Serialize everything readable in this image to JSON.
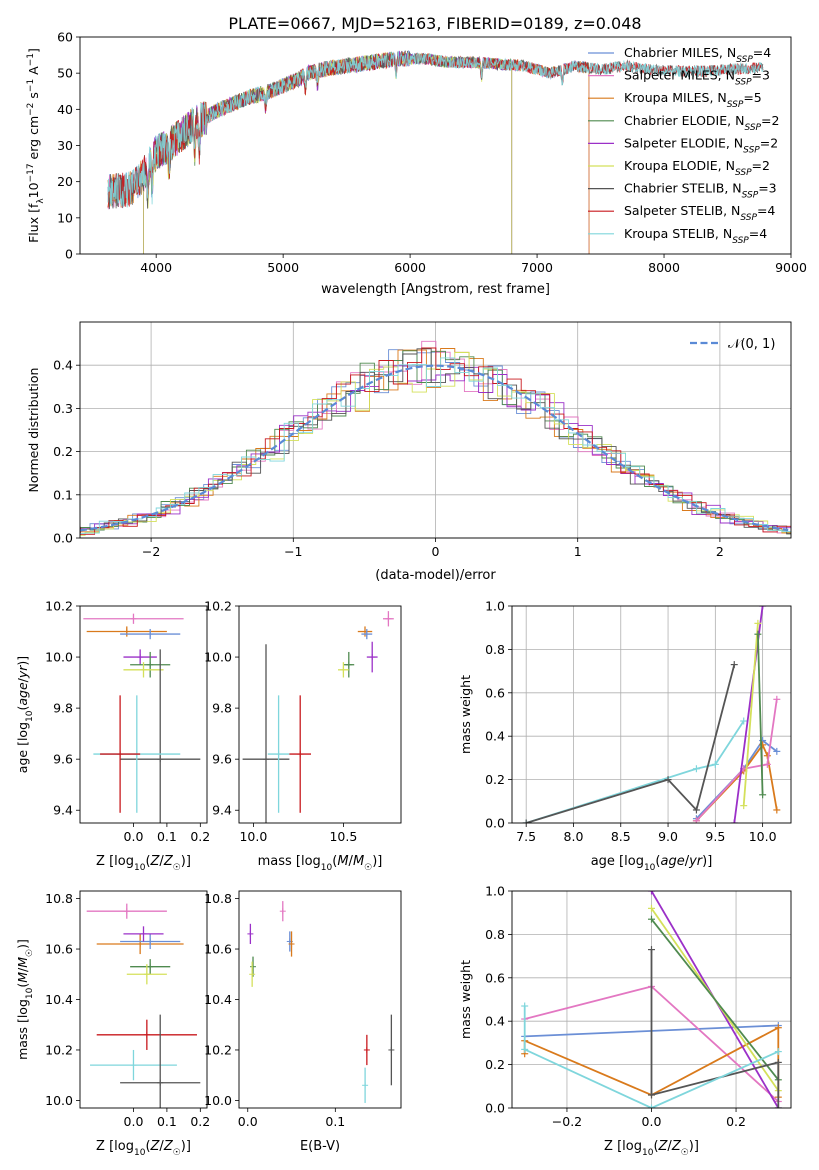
{
  "figure_title": "PLATE=0667, MJD=52163, FIBERID=0189, z=0.048",
  "colors": {
    "chabrier_miles": "#6b8fd6",
    "salpeter_miles": "#e377c2",
    "kroupa_miles": "#d97a1c",
    "chabrier_elodie": "#4f8a4f",
    "salpeter_elodie": "#9b30c8",
    "kroupa_elodie": "#d4e05a",
    "chabrier_stelib": "#555555",
    "salpeter_stelib": "#c8191e",
    "kroupa_stelib": "#7fd6dc",
    "normal_curve": "#5a8ad6",
    "grid": "#b0b0b0"
  },
  "chart_data": [
    {
      "id": "spectrum",
      "type": "line",
      "xlabel": "wavelength [Angstrom, rest frame]",
      "ylabel": "Flux [f_λ10^-17 erg cm^-2 s^-1 A^-1]",
      "xlim": [
        3400,
        9000
      ],
      "ylim": [
        0,
        60
      ],
      "xticks": [
        4000,
        5000,
        6000,
        7000,
        8000,
        9000
      ],
      "yticks": [
        0,
        10,
        20,
        30,
        40,
        50,
        60
      ],
      "grid": false,
      "legend_position": "top-right",
      "legend": [
        {
          "key": "chabrier_miles",
          "label": "Chabrier MILES, N",
          "sub": "SSP",
          "suffix": "=4",
          "range": [
            3620,
            7410
          ]
        },
        {
          "key": "salpeter_miles",
          "label": "Salpeter MILES, N",
          "sub": "SSP",
          "suffix": "=3",
          "range": [
            3620,
            7410
          ]
        },
        {
          "key": "kroupa_miles",
          "label": "Kroupa MILES, N",
          "sub": "SSP",
          "suffix": "=5",
          "range": [
            3620,
            7410
          ]
        },
        {
          "key": "chabrier_elodie",
          "label": "Chabrier ELODIE, N",
          "sub": "SSP",
          "suffix": "=2",
          "range": [
            3900,
            6800
          ]
        },
        {
          "key": "salpeter_elodie",
          "label": "Salpeter ELODIE, N",
          "sub": "SSP",
          "suffix": "=2",
          "range": [
            3900,
            6800
          ]
        },
        {
          "key": "kroupa_elodie",
          "label": "Kroupa ELODIE, N",
          "sub": "SSP",
          "suffix": "=2",
          "range": [
            3900,
            6800
          ]
        },
        {
          "key": "chabrier_stelib",
          "label": "Chabrier STELIB, N",
          "sub": "SSP",
          "suffix": "=3",
          "range": [
            3620,
            8780
          ]
        },
        {
          "key": "salpeter_stelib",
          "label": "Salpeter STELIB, N",
          "sub": "SSP",
          "suffix": "=4",
          "range": [
            3620,
            8780
          ]
        },
        {
          "key": "kroupa_stelib",
          "label": "Kroupa STELIB, N",
          "sub": "SSP",
          "suffix": "=4",
          "range": [
            3620,
            8780
          ]
        }
      ],
      "continuum_wavelength": [
        3620,
        3800,
        3900,
        4000,
        4100,
        4200,
        4300,
        4400,
        4500,
        4700,
        4900,
        5100,
        5200,
        5300,
        5500,
        5700,
        5900,
        6100,
        6300,
        6500,
        6700,
        6900,
        7100,
        7300,
        7500,
        7700,
        7900,
        8100,
        8300,
        8500,
        8780
      ],
      "continuum_flux": [
        17,
        18,
        22,
        28,
        30,
        33,
        36,
        38,
        40,
        43,
        45,
        48,
        50,
        51,
        52,
        53,
        54,
        54,
        53,
        53,
        52.5,
        52,
        50,
        52,
        51,
        52,
        51,
        50.5,
        50.5,
        51,
        51.5
      ]
    },
    {
      "id": "residuals",
      "type": "bar",
      "xlabel": "(data-model)/error",
      "ylabel": "Normed distribution",
      "xlim": [
        -2.5,
        2.5
      ],
      "ylim": [
        0,
        0.5
      ],
      "xticks": [
        -2,
        -1,
        0,
        1,
        2
      ],
      "yticks": [
        0.0,
        0.1,
        0.2,
        0.3,
        0.4
      ],
      "grid": true,
      "legend_position": "top-right",
      "legend_label": "𝒩(0, 1)",
      "bin_width": 0.1
    },
    {
      "id": "age_vs_Z",
      "type": "scatter",
      "xlabel": "Z [log₁₀(Z/Z☉)]",
      "ylabel": "age  [log₁₀(age/yr)]",
      "xlim": [
        -0.16,
        0.22
      ],
      "ylim": [
        9.35,
        10.2
      ],
      "xticks": [
        0.0,
        0.1,
        0.2
      ],
      "yticks": [
        9.4,
        9.6,
        9.8,
        10.0,
        10.2
      ],
      "grid": false,
      "points": [
        {
          "key": "salpeter_miles",
          "x": 0.0,
          "xerr": 0.15,
          "y": 10.15,
          "yerr": 0.02
        },
        {
          "key": "kroupa_miles",
          "x": -0.02,
          "xerr": 0.12,
          "y": 10.1,
          "yerr": 0.02
        },
        {
          "key": "chabrier_miles",
          "x": 0.05,
          "xerr": 0.09,
          "y": 10.09,
          "yerr": 0.02
        },
        {
          "key": "salpeter_elodie",
          "x": 0.02,
          "xerr": 0.05,
          "y": 10.0,
          "yerr": 0.03
        },
        {
          "key": "chabrier_elodie",
          "x": 0.05,
          "xerr": 0.06,
          "y": 9.97,
          "yerr": 0.05
        },
        {
          "key": "kroupa_elodie",
          "x": 0.03,
          "xerr": 0.06,
          "y": 9.95,
          "yerr": 0.03
        },
        {
          "key": "chabrier_stelib",
          "x": 0.08,
          "xerr": 0.12,
          "y": 9.6,
          "yerr": 0.43
        },
        {
          "key": "kroupa_stelib",
          "x": 0.01,
          "xerr": 0.13,
          "y": 9.62,
          "yerr": 0.23
        },
        {
          "key": "salpeter_stelib",
          "x": -0.04,
          "xerr": 0.06,
          "y": 9.62,
          "yerr": 0.23
        }
      ]
    },
    {
      "id": "age_vs_mass",
      "type": "scatter",
      "xlabel": "mass [log₁₀(M/M☉)]",
      "ylabel": "",
      "xlim": [
        9.92,
        10.82
      ],
      "ylim": [
        9.35,
        10.2
      ],
      "xticks": [
        10.0,
        10.5
      ],
      "yticks": [
        9.4,
        9.6,
        9.8,
        10.0,
        10.2
      ],
      "grid": false,
      "points": [
        {
          "key": "salpeter_miles",
          "x": 10.75,
          "xerr": 0.03,
          "y": 10.15,
          "yerr": 0.03
        },
        {
          "key": "kroupa_miles",
          "x": 10.62,
          "xerr": 0.04,
          "y": 10.1,
          "yerr": 0.02
        },
        {
          "key": "chabrier_miles",
          "x": 10.63,
          "xerr": 0.03,
          "y": 10.09,
          "yerr": 0.02
        },
        {
          "key": "salpeter_elodie",
          "x": 10.66,
          "xerr": 0.03,
          "y": 10.0,
          "yerr": 0.06
        },
        {
          "key": "chabrier_elodie",
          "x": 10.53,
          "xerr": 0.03,
          "y": 9.97,
          "yerr": 0.05
        },
        {
          "key": "kroupa_elodie",
          "x": 10.5,
          "xerr": 0.03,
          "y": 9.95,
          "yerr": 0.03
        },
        {
          "key": "chabrier_stelib",
          "x": 10.07,
          "xerr": 0.13,
          "y": 9.6,
          "yerr": 0.45
        },
        {
          "key": "kroupa_stelib",
          "x": 10.14,
          "xerr": 0.06,
          "y": 9.62,
          "yerr": 0.23
        },
        {
          "key": "salpeter_stelib",
          "x": 10.26,
          "xerr": 0.06,
          "y": 9.62,
          "yerr": 0.23
        }
      ]
    },
    {
      "id": "weight_vs_age",
      "type": "line",
      "xlabel": "age  [log₁₀(age/yr)]",
      "ylabel": "mass weight",
      "xlim": [
        7.35,
        10.3
      ],
      "ylim": [
        0,
        1
      ],
      "xticks": [
        7.5,
        8.0,
        8.5,
        9.0,
        9.5,
        10.0
      ],
      "yticks": [
        0.0,
        0.2,
        0.4,
        0.6,
        0.8,
        1.0
      ],
      "grid": true,
      "series": [
        {
          "key": "kroupa_stelib",
          "x": [
            7.5,
            9.3,
            9.5,
            9.8
          ],
          "y": [
            0.0,
            0.25,
            0.27,
            0.47
          ]
        },
        {
          "key": "chabrier_stelib",
          "x": [
            7.5,
            9.0,
            9.3,
            9.7
          ],
          "y": [
            0.0,
            0.2,
            0.06,
            0.73
          ]
        },
        {
          "key": "chabrier_miles",
          "x": [
            9.3,
            9.8,
            10.0,
            10.15
          ],
          "y": [
            0.02,
            0.25,
            0.38,
            0.33
          ]
        },
        {
          "key": "kroupa_miles",
          "x": [
            9.3,
            9.8,
            10.0,
            10.05,
            10.15
          ],
          "y": [
            0.01,
            0.24,
            0.36,
            0.31,
            0.06
          ]
        },
        {
          "key": "salpeter_miles",
          "x": [
            9.3,
            9.8,
            10.05,
            10.15
          ],
          "y": [
            0.01,
            0.25,
            0.27,
            0.57
          ]
        },
        {
          "key": "salpeter_elodie",
          "x": [
            9.7,
            10.0
          ],
          "y": [
            0.0,
            1.0
          ]
        },
        {
          "key": "kroupa_elodie",
          "x": [
            9.8,
            9.95
          ],
          "y": [
            0.08,
            0.92
          ]
        },
        {
          "key": "chabrier_elodie",
          "x": [
            9.95,
            10.0
          ],
          "y": [
            0.87,
            0.13
          ]
        }
      ]
    },
    {
      "id": "mass_vs_Z",
      "type": "scatter",
      "xlabel": "Z [log₁₀(Z/Z☉)]",
      "ylabel": "mass [log₁₀(M/M☉)]",
      "xlim": [
        -0.16,
        0.22
      ],
      "ylim": [
        9.97,
        10.83
      ],
      "xticks": [
        0.0,
        0.1,
        0.2
      ],
      "yticks": [
        10.0,
        10.2,
        10.4,
        10.6,
        10.8
      ],
      "grid": false,
      "points": [
        {
          "key": "salpeter_miles",
          "x": -0.02,
          "xerr": 0.12,
          "y": 10.75,
          "yerr": 0.03
        },
        {
          "key": "kroupa_miles",
          "x": 0.02,
          "xerr": 0.13,
          "y": 10.62,
          "yerr": 0.04
        },
        {
          "key": "chabrier_miles",
          "x": 0.05,
          "xerr": 0.09,
          "y": 10.63,
          "yerr": 0.03
        },
        {
          "key": "salpeter_elodie",
          "x": 0.03,
          "xerr": 0.06,
          "y": 10.66,
          "yerr": 0.03
        },
        {
          "key": "chabrier_elodie",
          "x": 0.05,
          "xerr": 0.06,
          "y": 10.53,
          "yerr": 0.03
        },
        {
          "key": "kroupa_elodie",
          "x": 0.04,
          "xerr": 0.06,
          "y": 10.5,
          "yerr": 0.04
        },
        {
          "key": "salpeter_stelib",
          "x": 0.04,
          "xerr": 0.15,
          "y": 10.26,
          "yerr": 0.06
        },
        {
          "key": "kroupa_stelib",
          "x": 0.0,
          "xerr": 0.13,
          "y": 10.14,
          "yerr": 0.06
        },
        {
          "key": "chabrier_stelib",
          "x": 0.08,
          "xerr": 0.12,
          "y": 10.07,
          "yerr": 0.27
        }
      ]
    },
    {
      "id": "mass_vs_ebv",
      "type": "scatter",
      "xlabel": "E(B-V)",
      "ylabel": "",
      "xlim": [
        -0.01,
        0.175
      ],
      "ylim": [
        9.97,
        10.83
      ],
      "xticks": [
        0.0,
        0.1
      ],
      "yticks": [
        10.0,
        10.2,
        10.4,
        10.6,
        10.8
      ],
      "grid": false,
      "points": [
        {
          "key": "salpeter_miles",
          "x": 0.04,
          "xerr": 0.0,
          "y": 10.75,
          "yerr": 0.04
        },
        {
          "key": "salpeter_elodie",
          "x": 0.003,
          "xerr": 0.0,
          "y": 10.66,
          "yerr": 0.04
        },
        {
          "key": "chabrier_miles",
          "x": 0.048,
          "xerr": 0.0,
          "y": 10.63,
          "yerr": 0.04
        },
        {
          "key": "kroupa_miles",
          "x": 0.05,
          "xerr": 0.0,
          "y": 10.62,
          "yerr": 0.05
        },
        {
          "key": "chabrier_elodie",
          "x": 0.006,
          "xerr": 0.0,
          "y": 10.53,
          "yerr": 0.04
        },
        {
          "key": "kroupa_elodie",
          "x": 0.005,
          "xerr": 0.0,
          "y": 10.5,
          "yerr": 0.05
        },
        {
          "key": "salpeter_stelib",
          "x": 0.136,
          "xerr": 0.0,
          "y": 10.2,
          "yerr": 0.06
        },
        {
          "key": "kroupa_stelib",
          "x": 0.134,
          "xerr": 0.0,
          "y": 10.06,
          "yerr": 0.07
        },
        {
          "key": "chabrier_stelib",
          "x": 0.164,
          "xerr": 0.0,
          "y": 10.2,
          "yerr": 0.14
        }
      ]
    },
    {
      "id": "weight_vs_Z",
      "type": "line",
      "xlabel": "Z [log₁₀(Z/Z☉)]",
      "ylabel": "mass weight",
      "xlim": [
        -0.33,
        0.33
      ],
      "ylim": [
        0,
        1
      ],
      "xticks": [
        -0.2,
        0.0,
        0.2
      ],
      "yticks": [
        0.0,
        0.2,
        0.4,
        0.6,
        0.8,
        1.0
      ],
      "grid": true,
      "series": [
        {
          "key": "chabrier_miles",
          "x": [
            -0.3,
            0.3
          ],
          "y": [
            0.33,
            0.38
          ]
        },
        {
          "key": "salpeter_miles",
          "x": [
            -0.3,
            0.0,
            0.3
          ],
          "y": [
            0.41,
            0.56,
            0.03
          ]
        },
        {
          "key": "kroupa_miles",
          "x": [
            -0.3,
            -0.3,
            0.0,
            0.3,
            0.3
          ],
          "y": [
            0.25,
            0.31,
            0.06,
            0.37,
            0.05
          ]
        },
        {
          "key": "salpeter_elodie",
          "x": [
            0.0,
            0.3
          ],
          "y": [
            1.0,
            0.0
          ]
        },
        {
          "key": "kroupa_elodie",
          "x": [
            0.0,
            0.3
          ],
          "y": [
            0.92,
            0.08
          ]
        },
        {
          "key": "chabrier_elodie",
          "x": [
            0.0,
            0.3
          ],
          "y": [
            0.87,
            0.13
          ]
        },
        {
          "key": "chabrier_stelib",
          "x": [
            0.0,
            0.0,
            0.3,
            0.3
          ],
          "y": [
            0.73,
            0.06,
            0.21,
            0.0
          ]
        },
        {
          "key": "kroupa_stelib",
          "x": [
            -0.3,
            -0.3,
            0.0,
            0.3
          ],
          "y": [
            0.47,
            0.27,
            0.0,
            0.26
          ]
        }
      ]
    }
  ]
}
